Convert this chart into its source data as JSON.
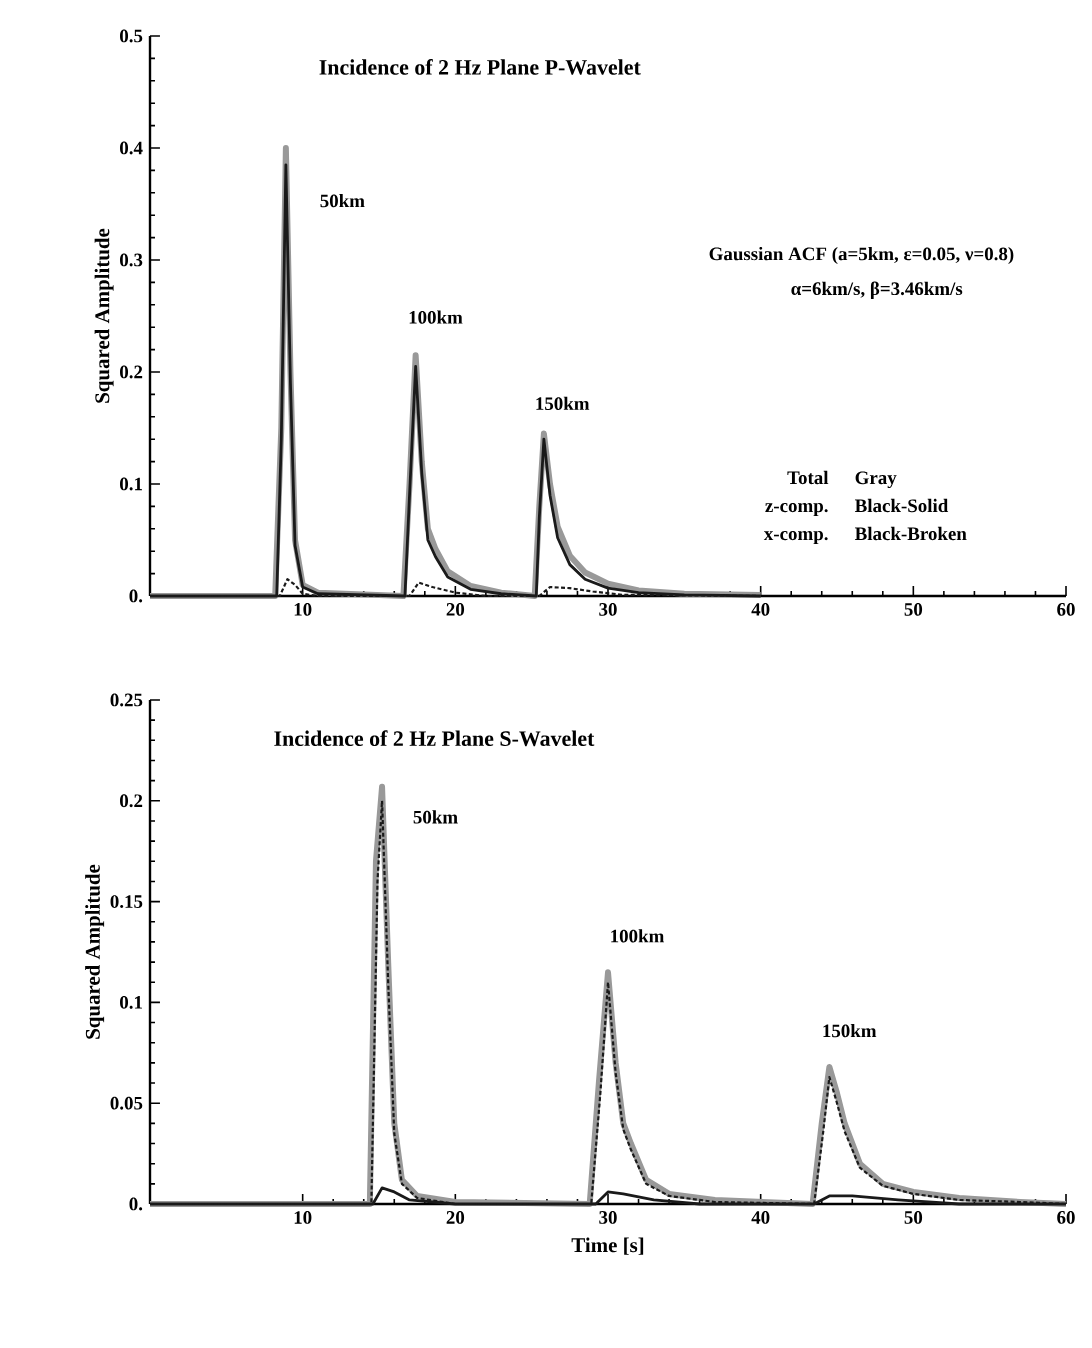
{
  "chart_data": [
    {
      "type": "line",
      "title": "Incidence of 2 Hz Plane P-Wavelet",
      "ylabel": "Squared Amplitude",
      "xlim": [
        0,
        60
      ],
      "xticks": [
        10,
        20,
        30,
        40,
        50,
        60
      ],
      "ylim": [
        0,
        0.5
      ],
      "yticks": [
        {
          "value": 0,
          "label": "0."
        },
        0.1,
        0.2,
        0.3,
        0.4,
        0.5
      ],
      "series": [
        {
          "color": "#999999",
          "line_style": "solid",
          "x": [
            0,
            8.2,
            8.6,
            8.9,
            9.2,
            9.5,
            10,
            11,
            16.6,
            17.0,
            17.4,
            17.8,
            18.2,
            18.7,
            19.5,
            21,
            23,
            25.2,
            25.5,
            25.8,
            26.2,
            26.7,
            27.5,
            28.5,
            30,
            32,
            35,
            40
          ],
          "values": [
            0,
            0,
            0.15,
            0.4,
            0.2,
            0.05,
            0.01,
            0.003,
            0,
            0.1,
            0.215,
            0.12,
            0.06,
            0.042,
            0.022,
            0.009,
            0.003,
            0,
            0.08,
            0.145,
            0.1,
            0.062,
            0.036,
            0.021,
            0.011,
            0.005,
            0.002,
            0.001
          ]
        },
        {
          "color": "#1a1a1a",
          "line_style": "solid",
          "x": [
            0,
            8.3,
            8.6,
            8.9,
            9.2,
            9.5,
            10,
            11,
            16.7,
            17.0,
            17.4,
            17.8,
            18.2,
            18.7,
            19.5,
            21,
            23,
            25.3,
            25.5,
            25.8,
            26.2,
            26.7,
            27.5,
            28.5,
            30,
            32,
            35,
            40
          ],
          "values": [
            0,
            0,
            0.14,
            0.385,
            0.19,
            0.045,
            0.008,
            0.002,
            0,
            0.09,
            0.205,
            0.11,
            0.05,
            0.035,
            0.017,
            0.006,
            0.002,
            0,
            0.07,
            0.14,
            0.09,
            0.052,
            0.028,
            0.015,
            0.007,
            0.003,
            0.001,
            0
          ]
        },
        {
          "color": "#1a1a1a",
          "line_style": "dashed",
          "x": [
            0,
            8.5,
            9.0,
            9.5,
            10,
            11,
            17,
            17.6,
            18.5,
            20,
            22,
            25.5,
            26.2,
            27.5,
            29,
            31,
            40
          ],
          "values": [
            0,
            0,
            0.015,
            0.01,
            0.002,
            0,
            0,
            0.012,
            0.008,
            0.003,
            0,
            0,
            0.008,
            0.007,
            0.004,
            0.001,
            0
          ]
        }
      ],
      "annotations": [
        "50km",
        "100km",
        "150km",
        "Gaussian ACF (a=5km, ε=0.05, ν=0.8)",
        "α=6km/s, β=3.46km/s",
        "Total",
        "Gray",
        "z-comp.",
        "Black-Solid",
        "x-comp.",
        "Black-Broken"
      ]
    },
    {
      "type": "line",
      "title": "Incidence of 2 Hz Plane S-Wavelet",
      "xlabel": "Time [s]",
      "ylabel": "Squared Amplitude",
      "xlim": [
        0,
        60
      ],
      "xticks": [
        10,
        20,
        30,
        40,
        50,
        60
      ],
      "ylim": [
        0,
        0.25
      ],
      "yticks": [
        {
          "value": 0,
          "label": "0."
        },
        0.05,
        0.1,
        0.15,
        0.2,
        0.25
      ],
      "series": [
        {
          "color": "#999999",
          "line_style": "solid",
          "x": [
            0,
            14.4,
            14.8,
            15.2,
            15.6,
            16.0,
            16.5,
            17.5,
            20,
            28.8,
            29.4,
            30.0,
            30.5,
            31.0,
            31.5,
            32.5,
            34,
            37,
            43.4,
            44.0,
            44.5,
            45,
            45.5,
            46.5,
            48,
            50,
            53,
            57,
            60
          ],
          "values": [
            0,
            0,
            0.17,
            0.207,
            0.12,
            0.04,
            0.012,
            0.004,
            0.001,
            0,
            0.06,
            0.115,
            0.07,
            0.04,
            0.03,
            0.012,
            0.005,
            0.002,
            0,
            0.04,
            0.068,
            0.055,
            0.04,
            0.02,
            0.01,
            0.006,
            0.003,
            0.001,
            0
          ]
        },
        {
          "color": "#1a1a1a",
          "line_style": "solid",
          "x": [
            0,
            14.6,
            15.2,
            16,
            17,
            20,
            29.2,
            30,
            31,
            33,
            36,
            43.5,
            44.5,
            46,
            49,
            53,
            60
          ],
          "values": [
            0,
            0,
            0.008,
            0.006,
            0.002,
            0,
            0,
            0.006,
            0.005,
            0.002,
            0,
            0,
            0.004,
            0.004,
            0.002,
            0,
            0
          ]
        },
        {
          "color": "#1a1a1a",
          "line_style": "dashed",
          "x": [
            0,
            14.5,
            14.9,
            15.2,
            15.6,
            16.0,
            16.5,
            17.5,
            20,
            28.9,
            29.5,
            30.0,
            30.5,
            31.0,
            31.5,
            32.5,
            34,
            37,
            43.5,
            44.1,
            44.5,
            45,
            45.5,
            46.5,
            48,
            50,
            53,
            57,
            60
          ],
          "values": [
            0,
            0,
            0.16,
            0.2,
            0.11,
            0.035,
            0.01,
            0.003,
            0,
            0,
            0.055,
            0.11,
            0.065,
            0.037,
            0.027,
            0.01,
            0.004,
            0.001,
            0,
            0.036,
            0.063,
            0.05,
            0.036,
            0.018,
            0.009,
            0.005,
            0.002,
            0.001,
            0
          ]
        }
      ],
      "annotations": [
        "50km",
        "100km",
        "150km"
      ]
    }
  ]
}
